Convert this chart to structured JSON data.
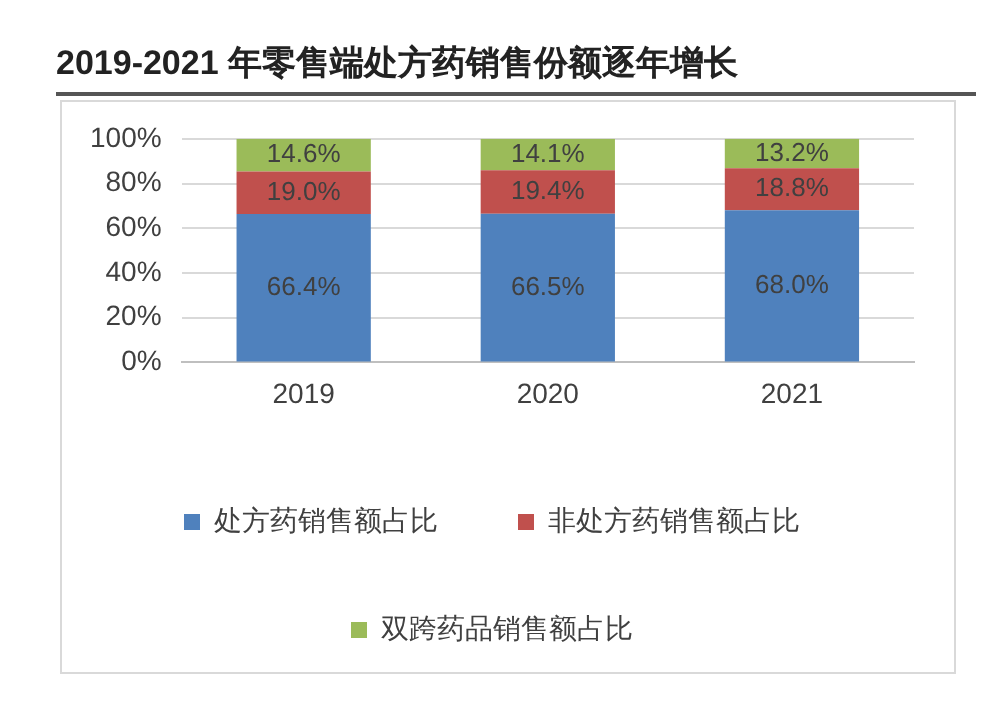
{
  "chart_data": {
    "type": "bar",
    "title": "2019-2021 年零售端处方药销售份额逐年增长",
    "categories": [
      "2019",
      "2020",
      "2021"
    ],
    "stacked": true,
    "ylim": [
      0,
      100
    ],
    "yticks": [
      {
        "value": 0,
        "label": "0%"
      },
      {
        "value": 20,
        "label": "20%"
      },
      {
        "value": 40,
        "label": "40%"
      },
      {
        "value": 60,
        "label": "60%"
      },
      {
        "value": 80,
        "label": "80%"
      },
      {
        "value": 100,
        "label": "100%"
      }
    ],
    "grid": "y",
    "legend": "bottom",
    "series": [
      {
        "name": "处方药销售额占比",
        "color": "#4f81bd",
        "values": [
          66.4,
          66.5,
          68.0
        ],
        "value_labels": [
          "66.4%",
          "66.5%",
          "68.0%"
        ]
      },
      {
        "name": "非处方药销售额占比",
        "color": "#c0504d",
        "values": [
          19.0,
          19.4,
          18.8
        ],
        "value_labels": [
          "19.0%",
          "19.4%",
          "18.8%"
        ]
      },
      {
        "name": "双跨药品销售额占比",
        "color": "#9bbb59",
        "values": [
          14.6,
          14.1,
          13.2
        ],
        "value_labels": [
          "14.6%",
          "14.1%",
          "13.2%"
        ]
      }
    ]
  }
}
